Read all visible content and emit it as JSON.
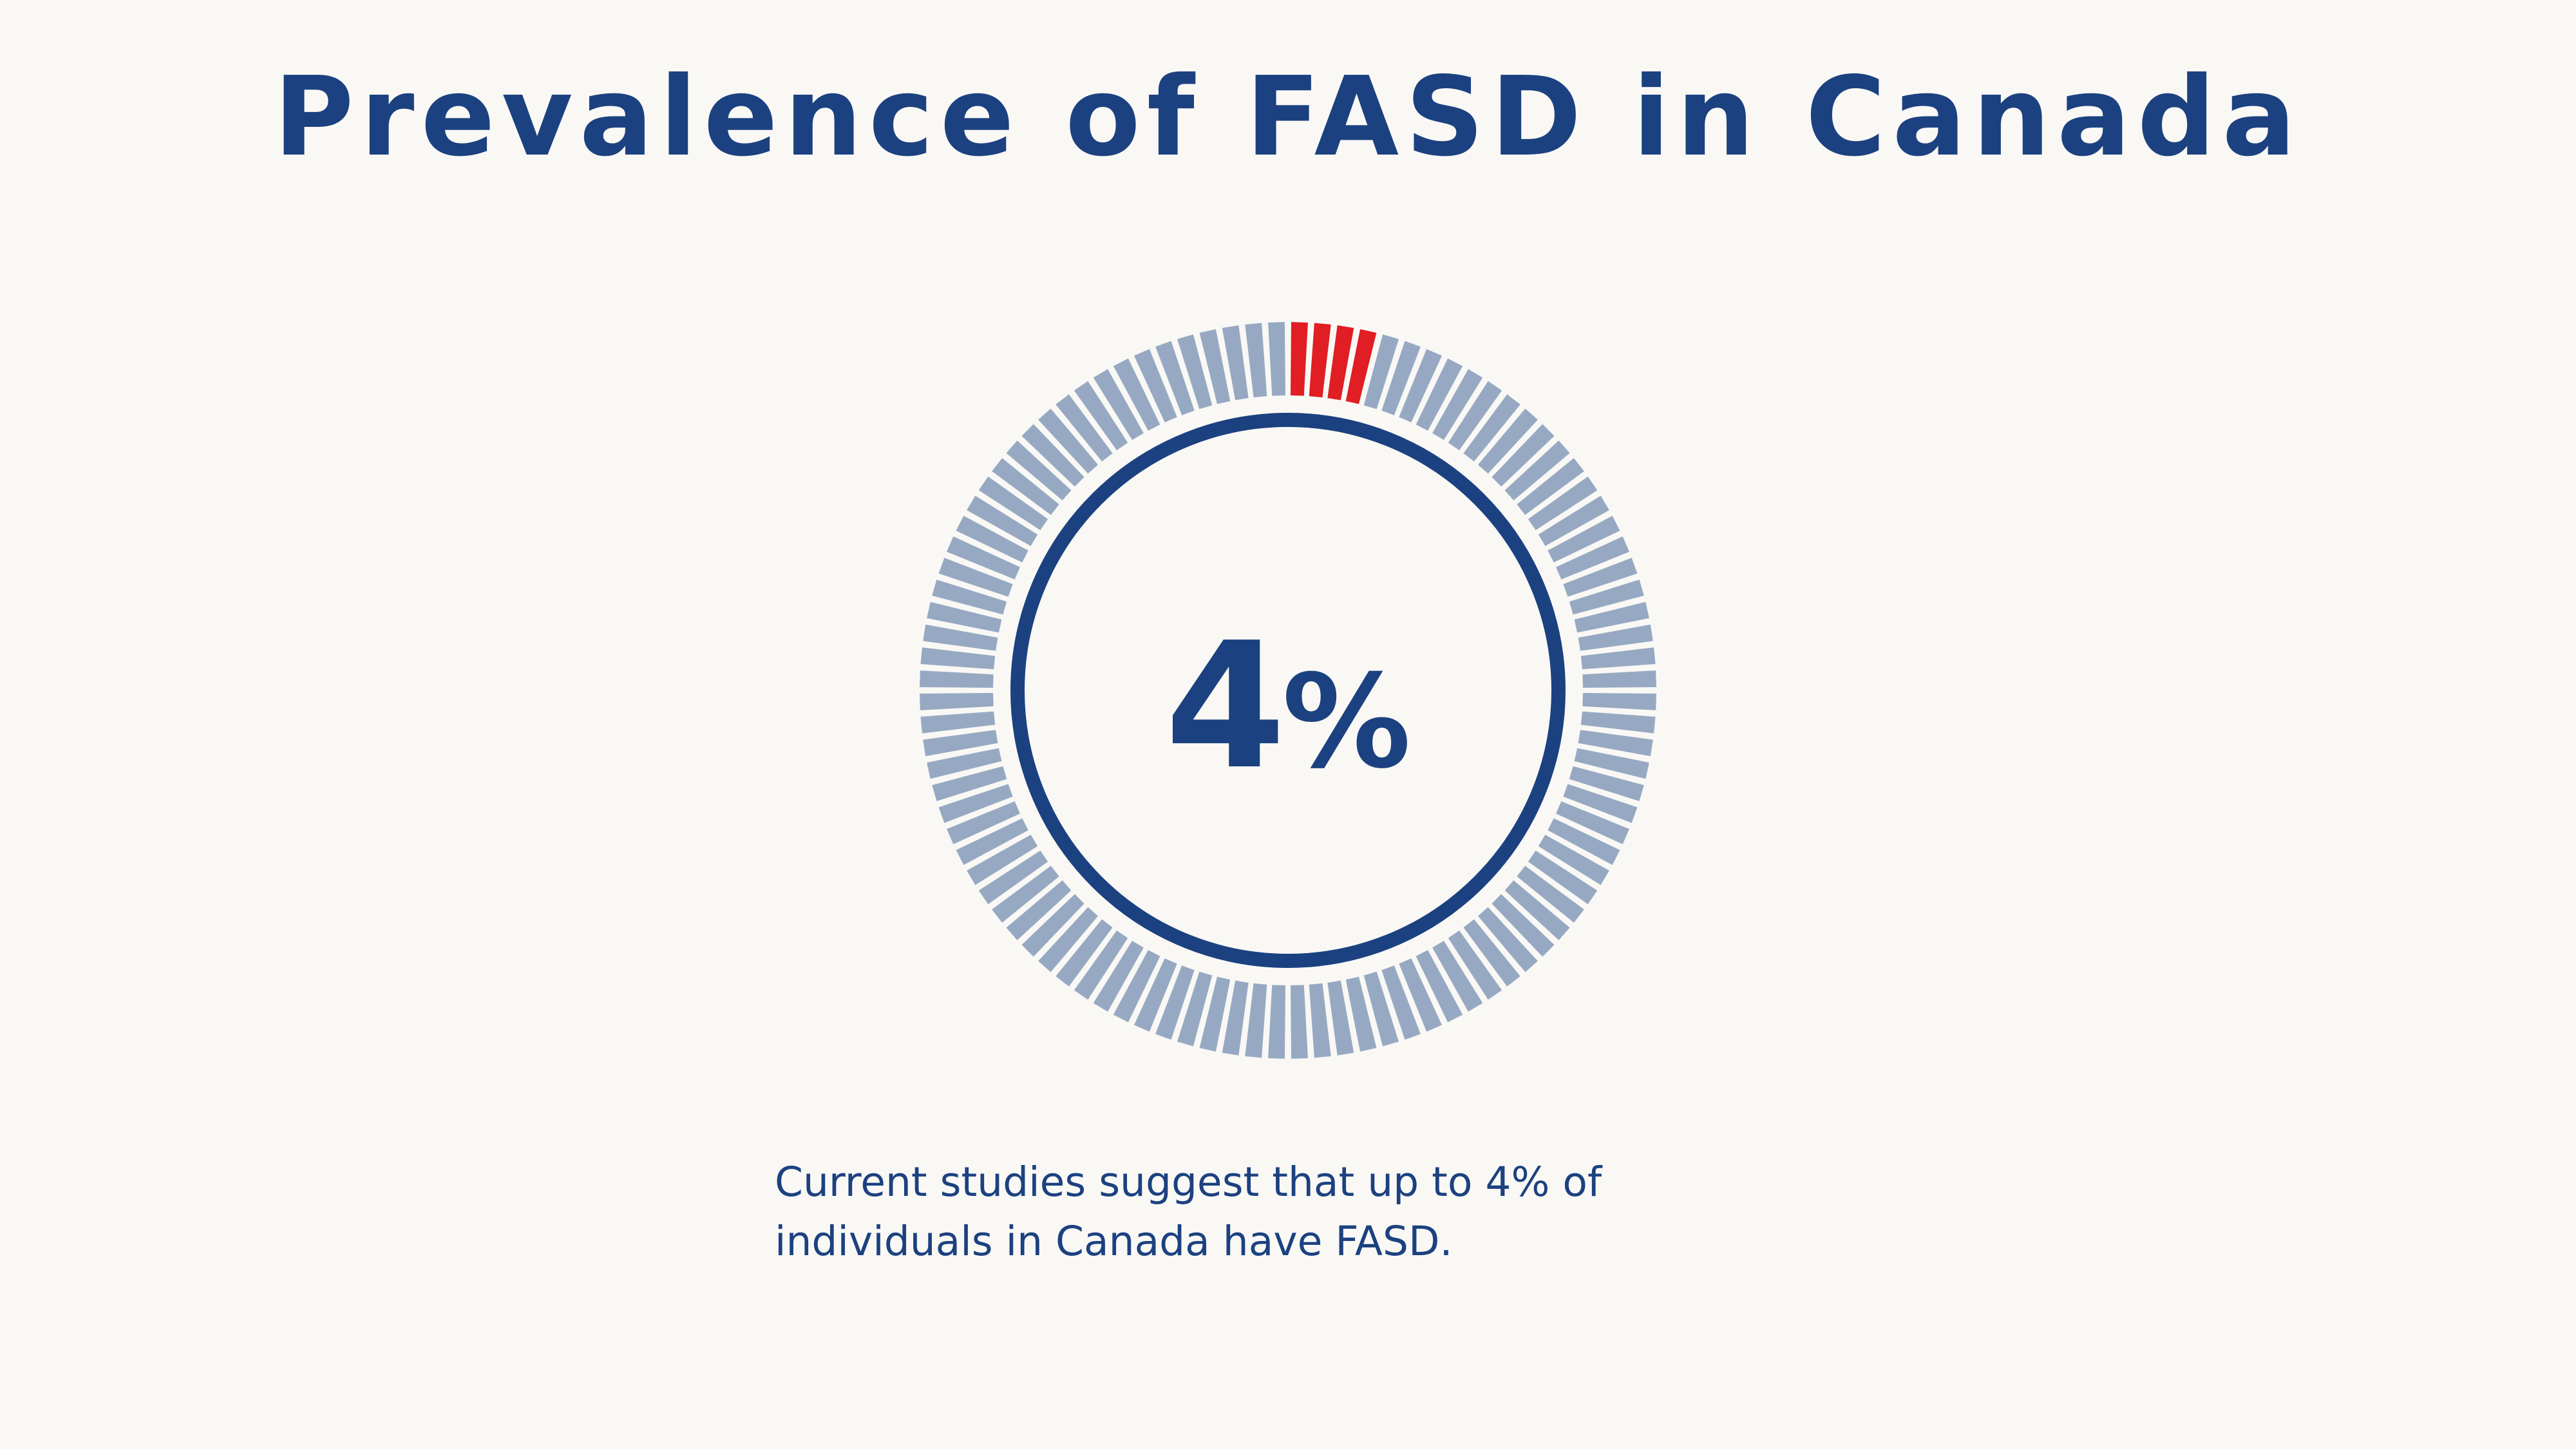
{
  "page": {
    "background": "#f9f8f5"
  },
  "colors": {
    "primary": "#1c4180",
    "highlight": "#e01e23",
    "muted": "#97a9c2"
  },
  "header": {
    "title": "Prevalence of FASD in Canada"
  },
  "chart_data": {
    "type": "pie",
    "total_segments": 100,
    "highlighted_segments": 4,
    "values": [
      4,
      96
    ],
    "center_label": "4",
    "center_unit": "%"
  },
  "caption": {
    "line1": "Current studies suggest that up to 4% of",
    "line2": "individuals in Canada have FASD."
  }
}
